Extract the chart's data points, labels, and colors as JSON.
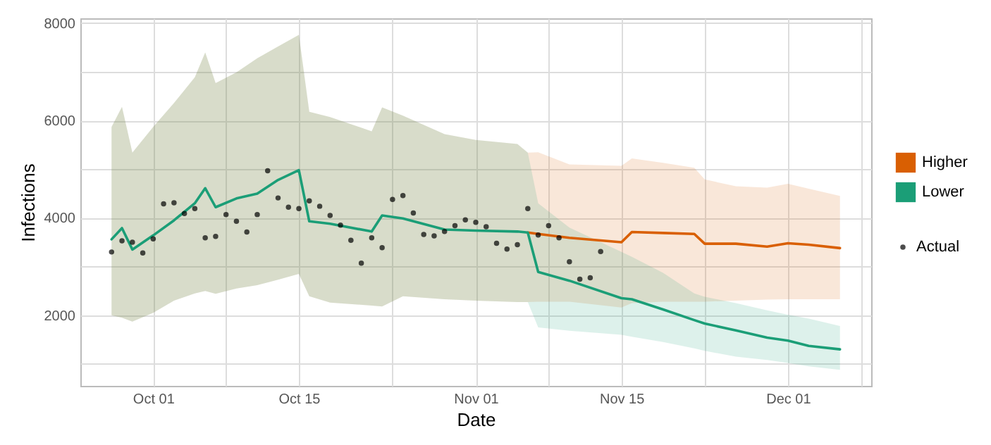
{
  "chart_data": {
    "type": "line",
    "xlabel": "Date",
    "ylabel": "Infections",
    "legend": "right",
    "grid": true,
    "xlim": [
      "--09-24",
      "--12-09"
    ],
    "xticks": [
      {
        "value": "--10-01",
        "label": "Oct 01"
      },
      {
        "value": "--10-08",
        "label": null
      },
      {
        "value": "--10-15",
        "label": "Oct 15"
      },
      {
        "value": "--10-24",
        "label": null
      },
      {
        "value": "--11-01",
        "label": "Nov 01"
      },
      {
        "value": "--11-08",
        "label": null
      },
      {
        "value": "--11-15",
        "label": "Nov 15"
      },
      {
        "value": "--11-23",
        "label": null
      },
      {
        "value": "--12-01",
        "label": "Dec 01"
      },
      {
        "value": "--12-08",
        "label": null
      }
    ],
    "ylim": [
      550,
      8100
    ],
    "yticks": [
      {
        "value": 1000,
        "label": null
      },
      2000,
      {
        "value": 3000,
        "label": null
      },
      4000,
      {
        "value": 5000,
        "label": null
      },
      6000,
      {
        "value": 7000,
        "label": null
      },
      8000
    ],
    "x": [
      "--09-27",
      "--09-28",
      "--09-29",
      "--10-01",
      "--10-03",
      "--10-05",
      "--10-06",
      "--10-07",
      "--10-09",
      "--10-11",
      "--10-13",
      "--10-15",
      "--10-16",
      "--10-18",
      "--10-22",
      "--10-23",
      "--10-25",
      "--10-29",
      "--11-01",
      "--11-05",
      "--11-06",
      "--11-07",
      "--11-10",
      "--11-15",
      "--11-16",
      "--11-19",
      "--11-22",
      "--11-23",
      "--11-26",
      "--11-29",
      "--12-01",
      "--12-03",
      "--12-06"
    ],
    "series": [
      {
        "name": "Higher",
        "color": "#d95f02",
        "values": [
          null,
          null,
          null,
          null,
          null,
          null,
          null,
          null,
          null,
          null,
          null,
          null,
          null,
          null,
          null,
          null,
          null,
          null,
          null,
          null,
          3700,
          3670,
          3590,
          3500,
          3710,
          3690,
          3670,
          3470,
          3470,
          3410,
          3480,
          3450,
          3380
        ],
        "upper": [
          5870,
          6280,
          5340,
          5870,
          6360,
          6890,
          7400,
          6770,
          6990,
          7280,
          7520,
          7760,
          6180,
          6070,
          5780,
          6270,
          6100,
          5720,
          5600,
          5520,
          5340,
          5350,
          5100,
          5070,
          5220,
          5130,
          5030,
          4790,
          4650,
          4620,
          4700,
          4600,
          4450
        ],
        "lower": [
          2000,
          1950,
          1870,
          2050,
          2300,
          2450,
          2500,
          2440,
          2550,
          2620,
          2730,
          2850,
          2390,
          2260,
          2200,
          2180,
          2390,
          2330,
          2300,
          2270,
          2270,
          2280,
          2280,
          2160,
          2250,
          2280,
          2280,
          2280,
          2300,
          2320,
          2330,
          2330,
          2330
        ]
      },
      {
        "name": "Lower",
        "color": "#1b9e77",
        "values": [
          3560,
          3790,
          3350,
          3640,
          3950,
          4300,
          4610,
          4220,
          4400,
          4500,
          4780,
          4980,
          3930,
          3880,
          3720,
          4050,
          3990,
          3760,
          3740,
          3720,
          3700,
          2890,
          2710,
          2350,
          2330,
          2120,
          1900,
          1830,
          1690,
          1540,
          1480,
          1370,
          1300
        ],
        "upper": [
          5870,
          6280,
          5340,
          5870,
          6360,
          6890,
          7400,
          6770,
          6990,
          7280,
          7520,
          7760,
          6180,
          6070,
          5780,
          6270,
          6100,
          5720,
          5600,
          5520,
          5340,
          4300,
          3800,
          3300,
          3200,
          2870,
          2450,
          2380,
          2250,
          2100,
          2010,
          1930,
          1780
        ],
        "lower": [
          2000,
          1950,
          1870,
          2050,
          2300,
          2450,
          2500,
          2440,
          2550,
          2620,
          2730,
          2850,
          2390,
          2260,
          2200,
          2180,
          2390,
          2330,
          2300,
          2270,
          2270,
          1750,
          1680,
          1600,
          1560,
          1450,
          1320,
          1270,
          1150,
          1080,
          1020,
          950,
          880
        ]
      },
      {
        "name": "Actual",
        "type": "scatter",
        "color": "#000000",
        "marker": "circle",
        "x": [
          "--09-27",
          "--09-28",
          "--09-29",
          "--09-30",
          "--10-01",
          "--10-02",
          "--10-03",
          "--10-04",
          "--10-05",
          "--10-06",
          "--10-07",
          "--10-08",
          "--10-09",
          "--10-10",
          "--10-11",
          "--10-12",
          "--10-13",
          "--10-14",
          "--10-15",
          "--10-16",
          "--10-17",
          "--10-18",
          "--10-19",
          "--10-20",
          "--10-21",
          "--10-22",
          "--10-23",
          "--10-24",
          "--10-25",
          "--10-26",
          "--10-27",
          "--10-28",
          "--10-29",
          "--10-30",
          "--10-31",
          "--11-01",
          "--11-02",
          "--11-03",
          "--11-04",
          "--11-05",
          "--11-06",
          "--11-07",
          "--11-08",
          "--11-09",
          "--11-10",
          "--11-11",
          "--11-12",
          "--11-13"
        ],
        "values": [
          3300,
          3530,
          3500,
          3280,
          3570,
          4290,
          4310,
          4090,
          4190,
          3590,
          3620,
          4070,
          3930,
          3710,
          4070,
          4970,
          4410,
          4220,
          4190,
          4350,
          4240,
          4050,
          3850,
          3540,
          3070,
          3590,
          3390,
          4380,
          4460,
          4100,
          3660,
          3630,
          3720,
          3840,
          3960,
          3910,
          3820,
          3480,
          3360,
          3450,
          4190,
          3650,
          3840,
          3590,
          3100,
          2740,
          2770,
          3310
        ]
      }
    ]
  }
}
